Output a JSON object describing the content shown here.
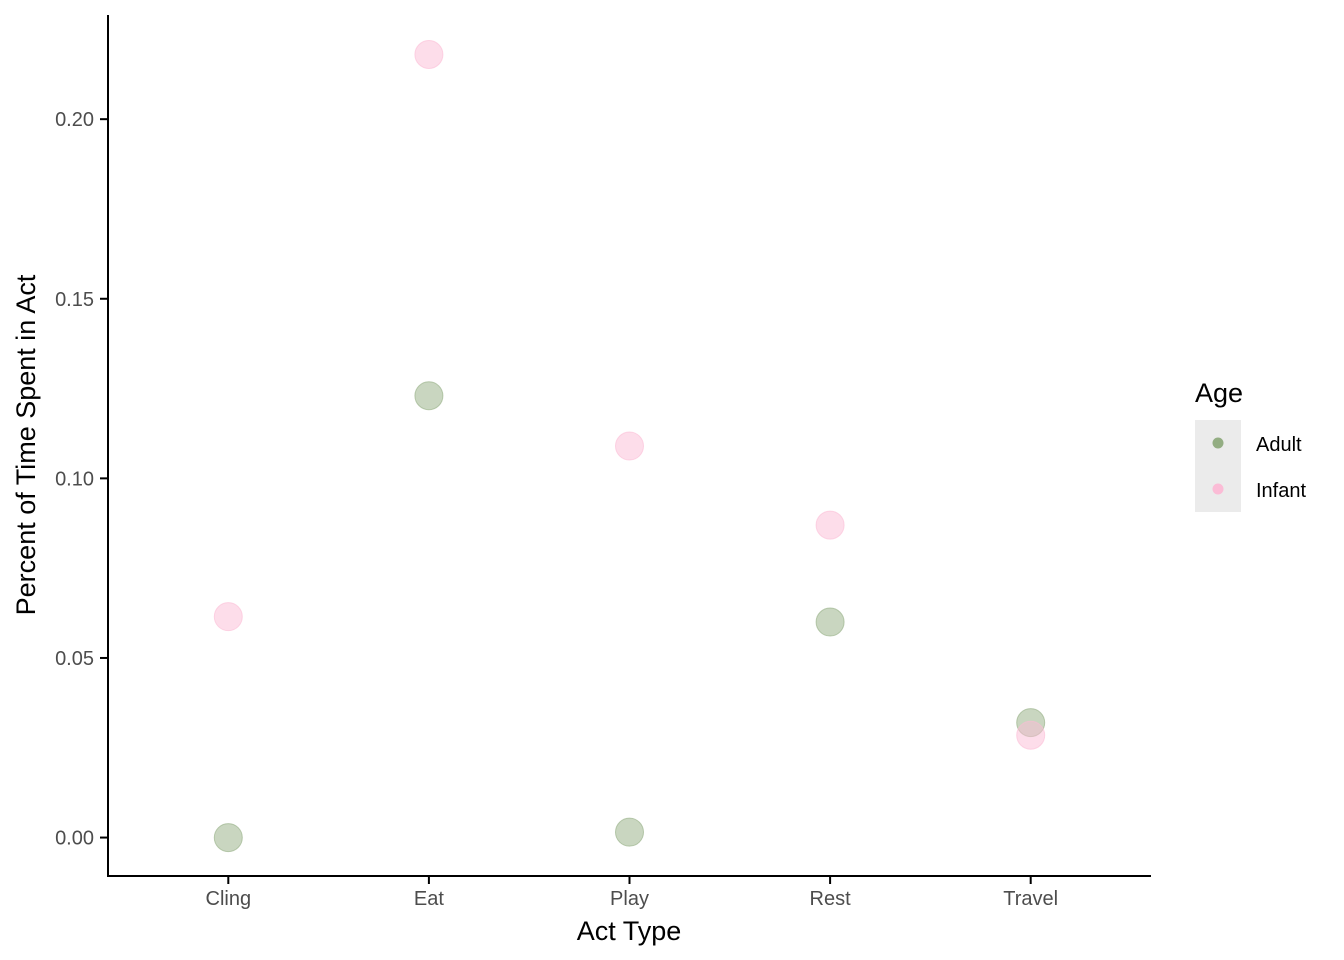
{
  "chart_data": {
    "type": "scatter",
    "categories": [
      "Cling",
      "Eat",
      "Play",
      "Rest",
      "Travel"
    ],
    "xlabel": "Act Type",
    "ylabel": "Percent of Time Spent in Act",
    "ylim": [
      -0.0107,
      0.229
    ],
    "yticks": [
      0.0,
      0.05,
      0.1,
      0.15,
      0.2
    ],
    "yticks_labels": [
      "0.00",
      "0.05",
      "0.10",
      "0.15",
      "0.20"
    ],
    "grid": false,
    "legend": {
      "title": "Age",
      "position": "right"
    },
    "series": [
      {
        "name": "Adult",
        "color": "#93ad82",
        "values": [
          0.0,
          0.123,
          0.0015,
          0.06,
          0.032
        ]
      },
      {
        "name": "Infant",
        "color": "#fbbcd6",
        "values": [
          0.0615,
          0.218,
          0.109,
          0.087,
          0.0285
        ]
      }
    ]
  }
}
